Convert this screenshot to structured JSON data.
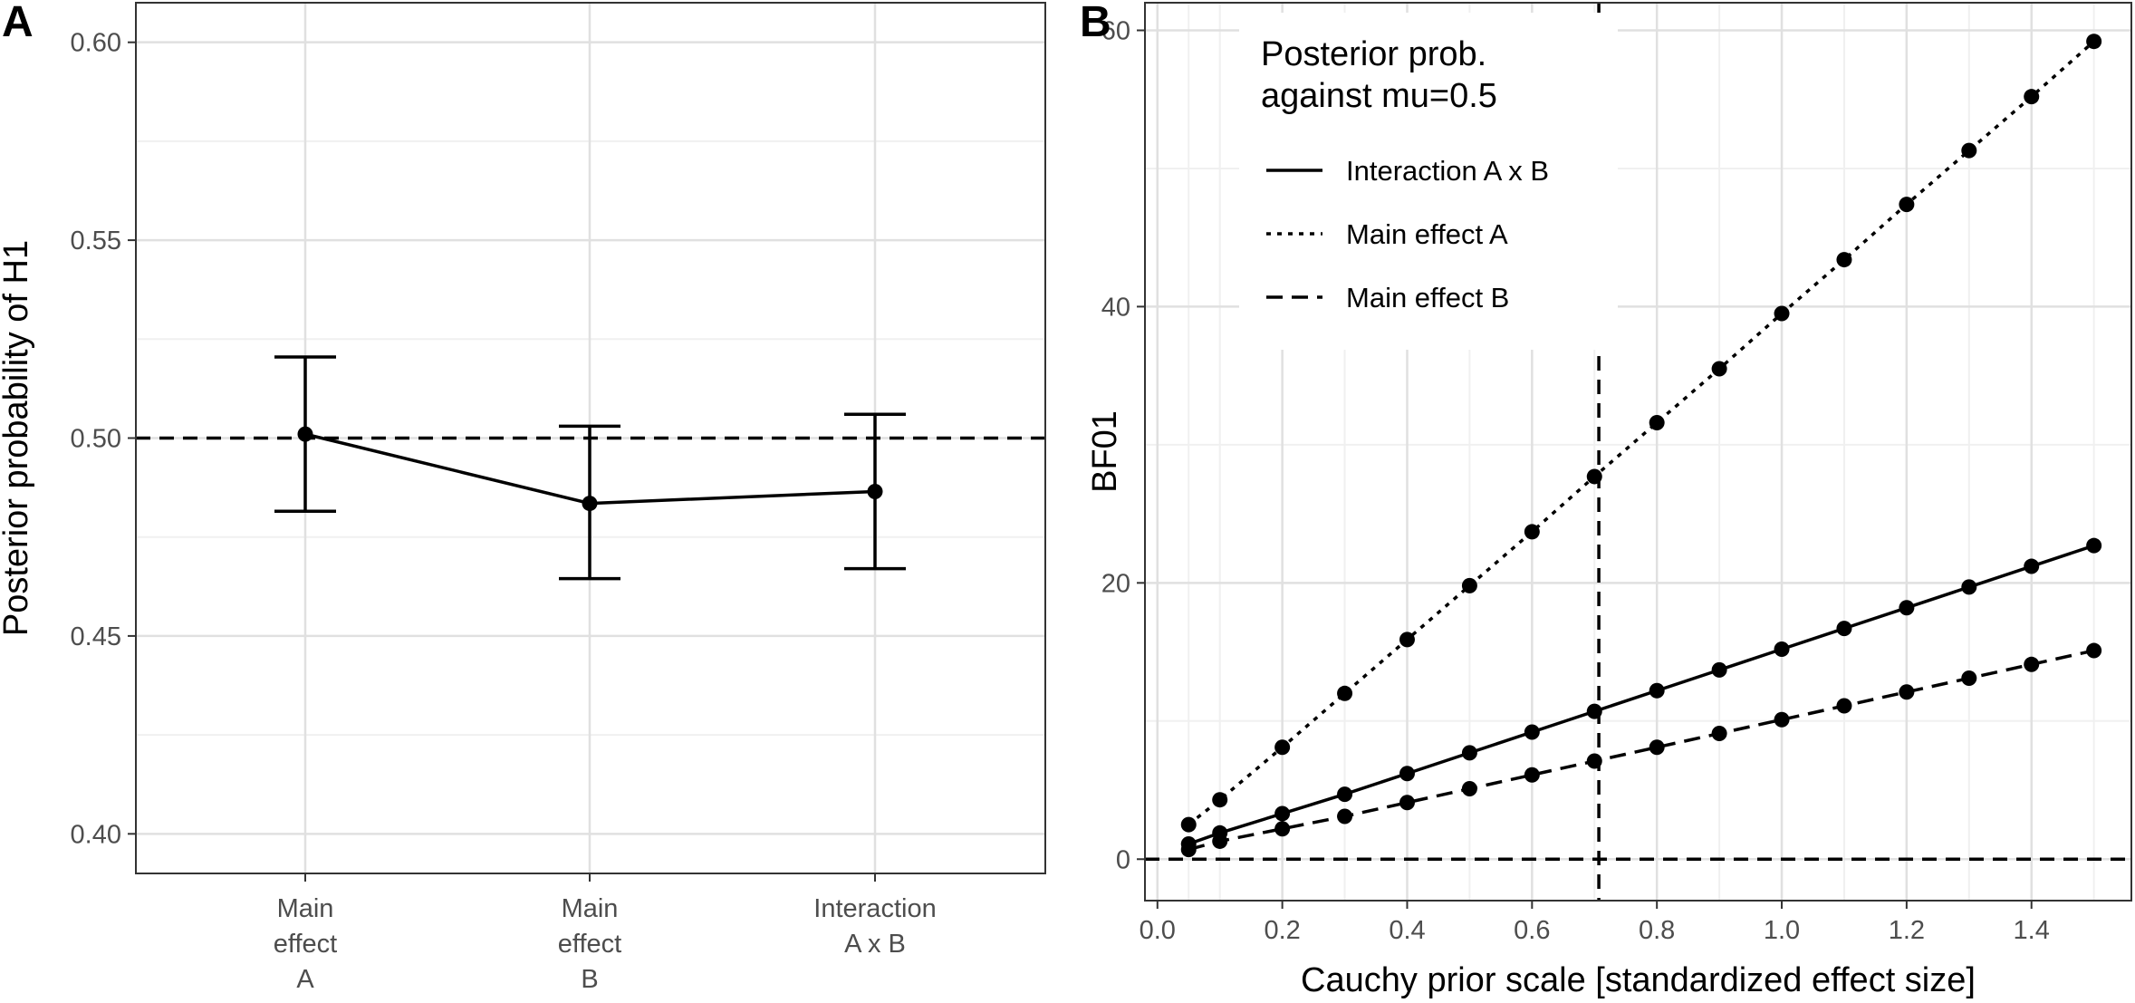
{
  "chart_data": [
    {
      "panel": "A",
      "type": "line",
      "ylabel": "Posterior probability of H1",
      "xlabel": "",
      "ylim": [
        0.39,
        0.61
      ],
      "yticks": [
        "0.40",
        "0.45",
        "0.50",
        "0.55",
        "0.60"
      ],
      "ytick_values": [
        0.4,
        0.45,
        0.5,
        0.55,
        0.6
      ],
      "categories": [
        [
          "Main",
          "effect",
          "A"
        ],
        [
          "Main",
          "effect",
          "B"
        ],
        [
          "Interaction",
          "A x B"
        ]
      ],
      "values": [
        0.501,
        0.4835,
        0.4865
      ],
      "error_low": [
        0.4815,
        0.4645,
        0.467
      ],
      "error_high": [
        0.5205,
        0.503,
        0.506
      ],
      "reference_line": 0.5,
      "grid": true
    },
    {
      "panel": "B",
      "type": "line",
      "ylabel": "BF01",
      "xlabel": "Cauchy prior scale [standardized effect size]",
      "xlim": [
        -0.02,
        1.56
      ],
      "ylim": [
        -3,
        62
      ],
      "xticks": [
        "0.0",
        "0.2",
        "0.4",
        "0.6",
        "0.8",
        "1.0",
        "1.2",
        "1.4"
      ],
      "xtick_values": [
        0.0,
        0.2,
        0.4,
        0.6,
        0.8,
        1.0,
        1.2,
        1.4
      ],
      "yticks": [
        "0",
        "20",
        "40",
        "60"
      ],
      "ytick_values": [
        0,
        20,
        40,
        60
      ],
      "vline": 0.707,
      "hline": 0,
      "grid": true,
      "legend": {
        "title_lines": [
          "Posterior prob.",
          "against mu=0.5"
        ],
        "placement": "top-left"
      },
      "x": [
        0.05,
        0.1,
        0.2,
        0.3,
        0.4,
        0.5,
        0.6,
        0.7,
        0.8,
        0.9,
        1.0,
        1.1,
        1.2,
        1.3,
        1.4,
        1.5
      ],
      "series": [
        {
          "name": "Interaction A x B",
          "linestyle": "solid",
          "values": [
            1.1,
            1.9,
            3.3,
            4.7,
            6.2,
            7.7,
            9.2,
            10.7,
            12.2,
            13.7,
            15.2,
            16.7,
            18.2,
            19.7,
            21.2,
            22.7
          ]
        },
        {
          "name": "Main effect A",
          "linestyle": "dotted",
          "values": [
            2.5,
            4.3,
            8.1,
            12.0,
            15.9,
            19.8,
            23.7,
            27.7,
            31.6,
            35.5,
            39.5,
            43.4,
            47.4,
            51.3,
            55.2,
            59.2
          ]
        },
        {
          "name": "Main effect B",
          "linestyle": "dashed",
          "values": [
            0.7,
            1.3,
            2.2,
            3.1,
            4.1,
            5.1,
            6.1,
            7.1,
            8.1,
            9.1,
            10.1,
            11.1,
            12.1,
            13.1,
            14.1,
            15.1
          ]
        }
      ]
    }
  ]
}
